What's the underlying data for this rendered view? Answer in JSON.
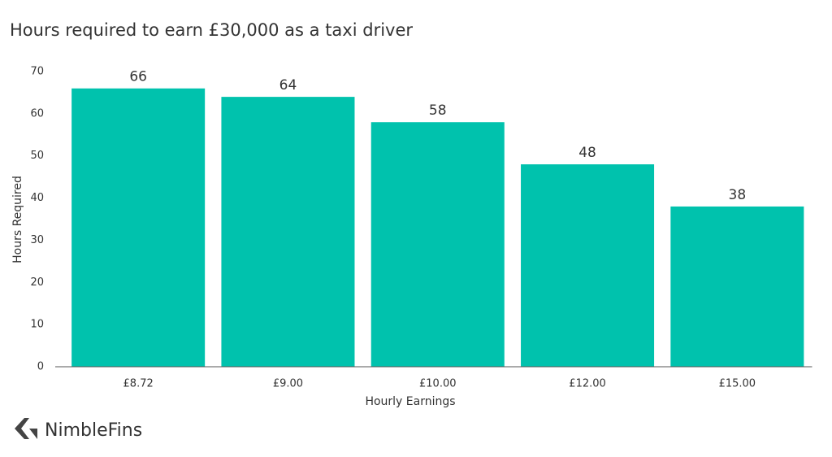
{
  "brand": "NimbleFins",
  "chart_data": {
    "type": "bar",
    "title": "Hours required to earn £30,000 as a taxi driver",
    "x_label": "Hourly Earnings",
    "y_label": "Hours Required",
    "categories": [
      "£8.72",
      "£9.00",
      "£10.00",
      "£12.00",
      "£15.00"
    ],
    "values": [
      66,
      64,
      58,
      48,
      38
    ],
    "color": "#00c2ad",
    "ylim": [
      0,
      70
    ],
    "yticks": [
      0,
      10,
      20,
      30,
      40,
      50,
      60,
      70
    ],
    "grid": false
  }
}
